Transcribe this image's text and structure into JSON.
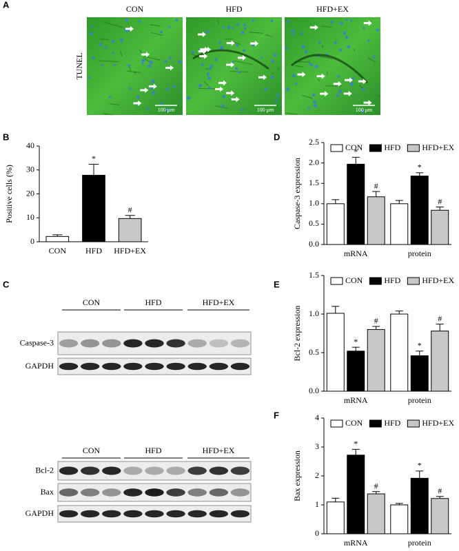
{
  "panel_letters": [
    "A",
    "B",
    "C",
    "D",
    "E",
    "F"
  ],
  "tunel": {
    "stain": "TUNEL",
    "groups": [
      "CON",
      "HFD",
      "HFD+EX"
    ],
    "scale_bar": "100 μm"
  },
  "blots": [
    {
      "groups": [
        "CON",
        "HFD",
        "HFD+EX"
      ],
      "rows": [
        "Caspase-3",
        "GAPDH"
      ]
    },
    {
      "groups": [
        "CON",
        "HFD",
        "HFD+EX"
      ],
      "rows": [
        "Bcl-2",
        "Bax",
        "GAPDH"
      ]
    }
  ],
  "chart_data": [
    {
      "type": "bar",
      "ylabel": "Positive cells (%)",
      "categories": [
        "CON",
        "HFD",
        "HFD+EX"
      ],
      "values": [
        2.2,
        27.8,
        9.7
      ],
      "errors": [
        0.7,
        4.6,
        1.3
      ],
      "annotations": [
        null,
        "*",
        "#"
      ],
      "colors": [
        "#ffffff",
        "#000000",
        "#c8c8c8"
      ],
      "ylim": [
        0,
        40
      ],
      "yticks": [
        0,
        10,
        20,
        30,
        40
      ]
    },
    {
      "type": "bar",
      "ylabel": "Caspase-3 expression",
      "categories": [
        "mRNA",
        "protein"
      ],
      "series": [
        {
          "name": "CON",
          "color": "#ffffff",
          "values": [
            1.0,
            1.0
          ],
          "errors": [
            0.1,
            0.08
          ],
          "annotations": [
            null,
            null
          ]
        },
        {
          "name": "HFD",
          "color": "#000000",
          "values": [
            1.97,
            1.68
          ],
          "errors": [
            0.17,
            0.08
          ],
          "annotations": [
            "*",
            "*"
          ]
        },
        {
          "name": "HFD+EX",
          "color": "#c8c8c8",
          "values": [
            1.17,
            0.84
          ],
          "errors": [
            0.13,
            0.08
          ],
          "annotations": [
            "#",
            "#"
          ]
        }
      ],
      "ylim": [
        0,
        2.5
      ],
      "yticks": [
        {
          "value": 0,
          "label": "0.0"
        },
        0.5,
        {
          "value": 1,
          "label": "1.0"
        },
        1.5,
        {
          "value": 2,
          "label": "2.0"
        },
        2.5
      ],
      "legend": "top"
    },
    {
      "type": "bar",
      "ylabel": "Bcl-2 expression",
      "categories": [
        "mRNA",
        "protein"
      ],
      "series": [
        {
          "name": "CON",
          "color": "#ffffff",
          "values": [
            1.01,
            1.0
          ],
          "errors": [
            0.09,
            0.04
          ],
          "annotations": [
            null,
            null
          ]
        },
        {
          "name": "HFD",
          "color": "#000000",
          "values": [
            0.52,
            0.46
          ],
          "errors": [
            0.05,
            0.06
          ],
          "annotations": [
            "*",
            "*"
          ]
        },
        {
          "name": "HFD+EX",
          "color": "#c8c8c8",
          "values": [
            0.8,
            0.78
          ],
          "errors": [
            0.04,
            0.09
          ],
          "annotations": [
            "#",
            "#"
          ]
        }
      ],
      "ylim": [
        0,
        1.5
      ],
      "yticks": [
        {
          "value": 0,
          "label": "0.0"
        },
        0.5,
        {
          "value": 1,
          "label": "1.0"
        },
        1.5
      ],
      "legend": "top"
    },
    {
      "type": "bar",
      "ylabel": "Bax expression",
      "categories": [
        "mRNA",
        "protein"
      ],
      "series": [
        {
          "name": "CON",
          "color": "#ffffff",
          "values": [
            1.1,
            1.0
          ],
          "errors": [
            0.13,
            0.05
          ],
          "annotations": [
            null,
            null
          ]
        },
        {
          "name": "HFD",
          "color": "#000000",
          "values": [
            2.72,
            1.92
          ],
          "errors": [
            0.2,
            0.25
          ],
          "annotations": [
            "*",
            "*"
          ]
        },
        {
          "name": "HFD+EX",
          "color": "#c8c8c8",
          "values": [
            1.38,
            1.22
          ],
          "errors": [
            0.08,
            0.07
          ],
          "annotations": [
            "#",
            "#"
          ]
        }
      ],
      "ylim": [
        0,
        4
      ],
      "yticks": [
        0,
        1,
        2,
        3,
        4
      ],
      "legend": "top"
    }
  ]
}
